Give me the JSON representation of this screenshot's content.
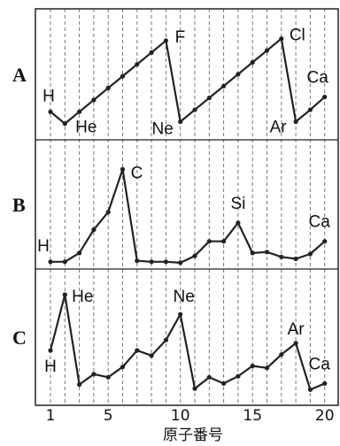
{
  "chart_data": {
    "type": "line",
    "xlabel": "原子番号",
    "xticks": [
      1,
      5,
      10,
      15,
      20
    ],
    "xlim": [
      1,
      20
    ],
    "grid": "vertical dashed at each integer",
    "panels": [
      {
        "label": "A",
        "ylim": [
          0,
          12
        ],
        "series": {
          "x": [
            1,
            2,
            3,
            4,
            5,
            6,
            7,
            8,
            9,
            10,
            11,
            12,
            13,
            14,
            15,
            16,
            17,
            18,
            19,
            20
          ],
          "y": [
            2.3,
            1.1,
            2.3,
            3.5,
            4.7,
            5.9,
            7.1,
            8.3,
            9.5,
            1.3,
            2.5,
            3.7,
            4.9,
            6.1,
            7.3,
            8.5,
            9.7,
            1.3,
            2.5,
            3.8
          ]
        },
        "annotations": [
          {
            "text": "H",
            "x": 1,
            "y": 2.3
          },
          {
            "text": "He",
            "x": 2,
            "y": 1.1
          },
          {
            "text": "F",
            "x": 9,
            "y": 9.5
          },
          {
            "text": "Ne",
            "x": 10,
            "y": 1.3
          },
          {
            "text": "Cl",
            "x": 17,
            "y": 9.7
          },
          {
            "text": "Ar",
            "x": 18,
            "y": 1.3
          },
          {
            "text": "Ca",
            "x": 20,
            "y": 3.8
          }
        ]
      },
      {
        "label": "B",
        "ylim": [
          0,
          12
        ],
        "series": {
          "x": [
            1,
            2,
            3,
            4,
            5,
            6,
            7,
            8,
            9,
            10,
            11,
            12,
            13,
            14,
            15,
            16,
            17,
            18,
            19,
            20
          ],
          "y": [
            0.2,
            0.2,
            1.1,
            3.5,
            5.3,
            9.7,
            0.3,
            0.2,
            0.2,
            0.1,
            0.8,
            2.3,
            2.3,
            4.2,
            1.1,
            1.2,
            0.7,
            0.5,
            1.0,
            2.3
          ]
        },
        "annotations": [
          {
            "text": "H",
            "x": 1,
            "y": 0.2
          },
          {
            "text": "C",
            "x": 6,
            "y": 9.7
          },
          {
            "text": "Si",
            "x": 14,
            "y": 4.2
          },
          {
            "text": "Ca",
            "x": 20,
            "y": 2.3
          }
        ]
      },
      {
        "label": "C",
        "ylim": [
          0,
          12
        ],
        "series": {
          "x": [
            1,
            2,
            3,
            4,
            5,
            6,
            7,
            8,
            9,
            10,
            11,
            12,
            13,
            14,
            15,
            16,
            17,
            18,
            19,
            20
          ],
          "y": [
            4.8,
            10.2,
            1.5,
            2.5,
            2.2,
            3.2,
            4.8,
            4.3,
            5.8,
            8.3,
            1.1,
            2.2,
            1.6,
            2.3,
            3.3,
            3.1,
            4.4,
            5.5,
            1.0,
            1.6
          ]
        },
        "annotations": [
          {
            "text": "H",
            "x": 1,
            "y": 4.8
          },
          {
            "text": "He",
            "x": 2,
            "y": 10.2
          },
          {
            "text": "Ne",
            "x": 10,
            "y": 8.3
          },
          {
            "text": "Ar",
            "x": 18,
            "y": 5.5
          },
          {
            "text": "Ca",
            "x": 20,
            "y": 1.6
          }
        ]
      }
    ]
  }
}
